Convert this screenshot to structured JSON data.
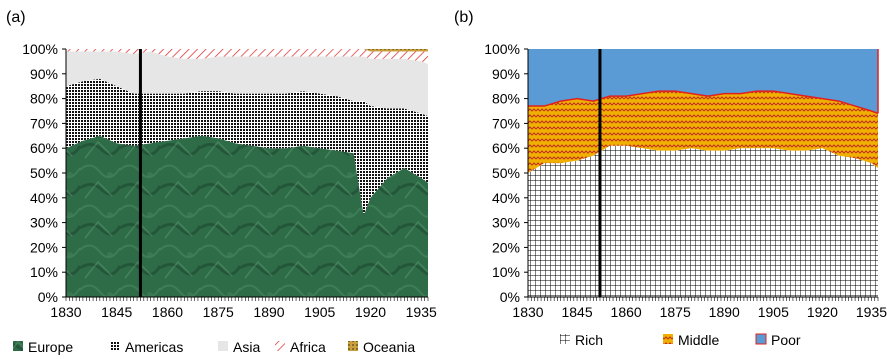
{
  "chart_data": [
    {
      "panel": "(a)",
      "type": "area",
      "stacked": true,
      "percent": true,
      "x": [
        1830,
        1835,
        1840,
        1845,
        1850,
        1855,
        1860,
        1865,
        1870,
        1875,
        1880,
        1885,
        1890,
        1895,
        1900,
        1905,
        1910,
        1915,
        1918,
        1920,
        1925,
        1930,
        1935,
        1937
      ],
      "series": [
        {
          "name": "Europe",
          "color": "#2e6b47",
          "values": [
            60,
            63,
            65,
            62,
            61,
            62,
            63,
            64,
            65,
            64,
            62,
            61,
            60,
            60,
            61,
            60,
            59,
            58,
            33,
            40,
            48,
            52,
            48,
            46
          ]
        },
        {
          "name": "Americas",
          "color": "#1a1a1a",
          "values": [
            25,
            24,
            23,
            23,
            21,
            20,
            19,
            18,
            18,
            19,
            20,
            21,
            22,
            22,
            22,
            22,
            22,
            21,
            46,
            37,
            28,
            24,
            26,
            27
          ]
        },
        {
          "name": "Asia",
          "color": "#e6e6e6",
          "values": [
            14,
            12,
            11,
            14,
            16,
            17,
            15,
            14,
            13,
            14,
            15,
            15,
            15,
            15,
            14,
            15,
            16,
            18,
            18,
            19,
            20,
            20,
            21,
            21
          ]
        },
        {
          "name": "Africa",
          "color": "#e03030",
          "values": [
            1,
            1,
            1,
            1,
            2,
            1,
            3,
            4,
            4,
            3,
            3,
            3,
            3,
            3,
            3,
            3,
            3,
            3,
            3,
            3,
            3,
            3,
            4,
            5
          ]
        },
        {
          "name": "Oceania",
          "color": "#c8a040",
          "values": [
            0,
            0,
            0,
            0,
            0,
            0,
            0,
            0,
            0,
            0,
            0,
            0,
            0,
            0,
            0,
            0,
            0,
            0,
            0,
            1,
            1,
            1,
            1,
            1
          ]
        }
      ],
      "xticks": [
        "1830",
        "1845",
        "1860",
        "1875",
        "1890",
        "1905",
        "1920",
        "1935"
      ],
      "yticks": [
        "0%",
        "10%",
        "20%",
        "30%",
        "40%",
        "50%",
        "60%",
        "70%",
        "80%",
        "90%",
        "100%"
      ],
      "ylim": [
        0,
        100
      ],
      "xlim": [
        1830,
        1937
      ],
      "vline_x": 1852,
      "legend_position": "bottom"
    },
    {
      "panel": "(b)",
      "type": "area",
      "stacked": true,
      "percent": true,
      "x": [
        1830,
        1835,
        1840,
        1845,
        1850,
        1855,
        1860,
        1865,
        1870,
        1875,
        1880,
        1885,
        1890,
        1895,
        1900,
        1905,
        1910,
        1915,
        1920,
        1925,
        1930,
        1935,
        1937
      ],
      "series": [
        {
          "name": "Rich",
          "color": "#ffffff",
          "values": [
            50,
            54,
            54,
            55,
            57,
            61,
            61,
            60,
            59,
            59,
            60,
            59,
            59,
            60,
            60,
            60,
            59,
            59,
            60,
            57,
            56,
            54,
            52
          ]
        },
        {
          "name": "Middle",
          "color": "#f0b000",
          "values": [
            27,
            23,
            25,
            25,
            22,
            20,
            20,
            22,
            24,
            24,
            22,
            22,
            23,
            22,
            23,
            23,
            23,
            22,
            20,
            22,
            21,
            21,
            22
          ]
        },
        {
          "name": "Poor",
          "color": "#5b9bd5",
          "values": [
            23,
            23,
            21,
            20,
            21,
            19,
            19,
            18,
            17,
            17,
            18,
            19,
            18,
            18,
            17,
            17,
            18,
            19,
            20,
            21,
            23,
            25,
            26
          ]
        }
      ],
      "xticks": [
        "1830",
        "1845",
        "1860",
        "1875",
        "1890",
        "1905",
        "1920",
        "1935"
      ],
      "yticks": [
        "0%",
        "10%",
        "20%",
        "30%",
        "40%",
        "50%",
        "60%",
        "70%",
        "80%",
        "90%",
        "100%"
      ],
      "ylim": [
        0,
        100
      ],
      "xlim": [
        1830,
        1937
      ],
      "vline_x": 1852,
      "legend_position": "bottom"
    }
  ]
}
